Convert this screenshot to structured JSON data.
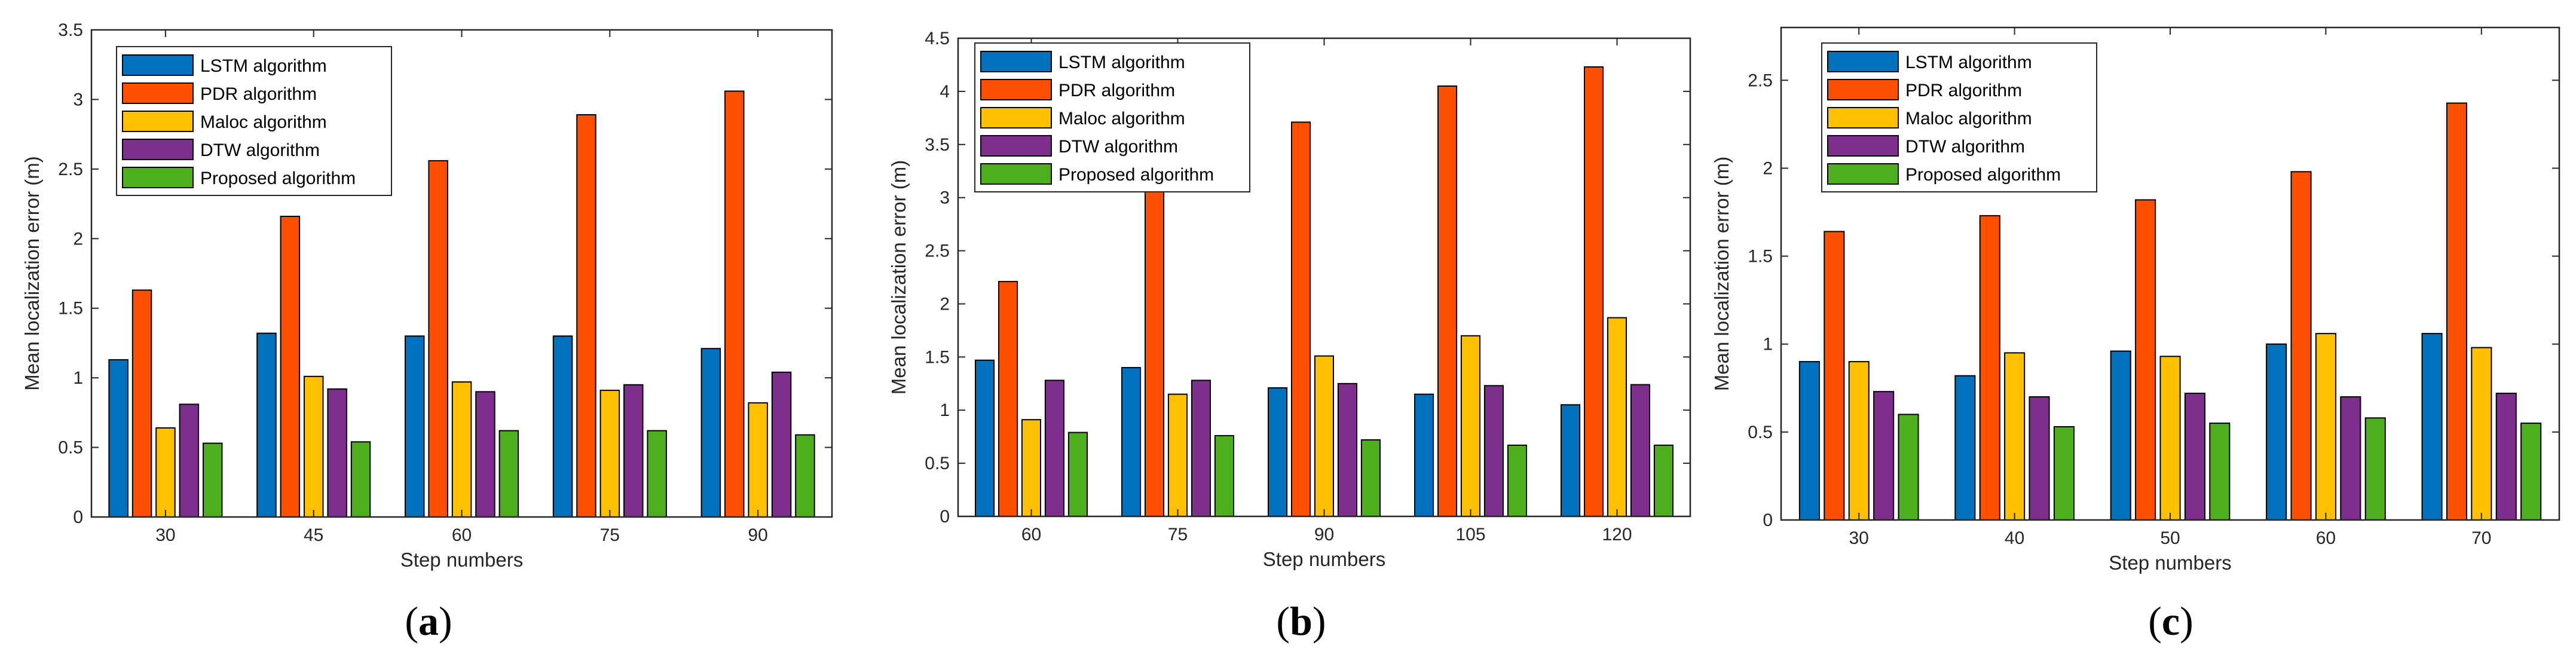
{
  "colors": {
    "series": [
      "#0072BD",
      "#FF4F00",
      "#FFC000",
      "#7E2F8E",
      "#4DAF1E"
    ],
    "axis": "#262626"
  },
  "chart_data": [
    {
      "type": "bar",
      "panel": "a",
      "xlabel": "Step numbers",
      "ylabel": "Mean localization error (m)",
      "ylim": [
        0,
        3.5
      ],
      "yticks": [
        0,
        0.5,
        1,
        1.5,
        2,
        2.5,
        3,
        3.5
      ],
      "yticklabels": [
        "0",
        "0.5",
        "1",
        "1.5",
        "2",
        "2.5",
        "3",
        "3.5"
      ],
      "categories": [
        "30",
        "45",
        "60",
        "75",
        "90"
      ],
      "legend_position": "top-left",
      "grid": false,
      "series": [
        {
          "name": "LSTM algorithm",
          "values": [
            1.13,
            1.32,
            1.3,
            1.3,
            1.21
          ]
        },
        {
          "name": "PDR algorithm",
          "values": [
            1.63,
            2.16,
            2.56,
            2.89,
            3.06
          ]
        },
        {
          "name": "Maloc algorithm",
          "values": [
            0.64,
            1.01,
            0.97,
            0.91,
            0.82
          ]
        },
        {
          "name": "DTW algorithm",
          "values": [
            0.81,
            0.92,
            0.9,
            0.95,
            1.04
          ]
        },
        {
          "name": "Proposed algorithm",
          "values": [
            0.53,
            0.54,
            0.62,
            0.62,
            0.59
          ]
        }
      ]
    },
    {
      "type": "bar",
      "panel": "b",
      "xlabel": "Step numbers",
      "ylabel": "Mean localization error (m)",
      "ylim": [
        0,
        4.5
      ],
      "yticks": [
        0,
        0.5,
        1,
        1.5,
        2,
        2.5,
        3,
        3.5,
        4,
        4.5
      ],
      "yticklabels": [
        "0",
        "0.5",
        "1",
        "1.5",
        "2",
        "2.5",
        "3",
        "3.5",
        "4",
        "4.5"
      ],
      "categories": [
        "60",
        "75",
        "90",
        "105",
        "120"
      ],
      "legend_position": "top-left",
      "grid": false,
      "series": [
        {
          "name": "LSTM algorithm",
          "values": [
            1.47,
            1.4,
            1.21,
            1.15,
            1.05
          ]
        },
        {
          "name": "PDR algorithm",
          "values": [
            2.21,
            3.1,
            3.71,
            4.05,
            4.23
          ]
        },
        {
          "name": "Maloc algorithm",
          "values": [
            0.91,
            1.15,
            1.51,
            1.7,
            1.87
          ]
        },
        {
          "name": "DTW algorithm",
          "values": [
            1.28,
            1.28,
            1.25,
            1.23,
            1.24
          ]
        },
        {
          "name": "Proposed algorithm",
          "values": [
            0.79,
            0.76,
            0.72,
            0.67,
            0.67
          ]
        }
      ]
    },
    {
      "type": "bar",
      "panel": "c",
      "xlabel": "Step numbers",
      "ylabel": "Mean localization error (m)",
      "ylim": [
        0,
        2.8
      ],
      "yticks": [
        0,
        0.5,
        1,
        1.5,
        2,
        2.5
      ],
      "yticklabels": [
        "0",
        "0.5",
        "1",
        "1.5",
        "2",
        "2.5"
      ],
      "categories": [
        "30",
        "40",
        "50",
        "60",
        "70"
      ],
      "legend_position": "top-left",
      "grid": false,
      "series": [
        {
          "name": "LSTM algorithm",
          "values": [
            0.9,
            0.82,
            0.96,
            1.0,
            1.06
          ]
        },
        {
          "name": "PDR algorithm",
          "values": [
            1.64,
            1.73,
            1.82,
            1.98,
            2.37
          ]
        },
        {
          "name": "Maloc algorithm",
          "values": [
            0.9,
            0.95,
            0.93,
            1.06,
            0.98
          ]
        },
        {
          "name": "DTW algorithm",
          "values": [
            0.73,
            0.7,
            0.72,
            0.7,
            0.72
          ]
        },
        {
          "name": "Proposed algorithm",
          "values": [
            0.6,
            0.53,
            0.55,
            0.58,
            0.55
          ]
        }
      ]
    }
  ]
}
